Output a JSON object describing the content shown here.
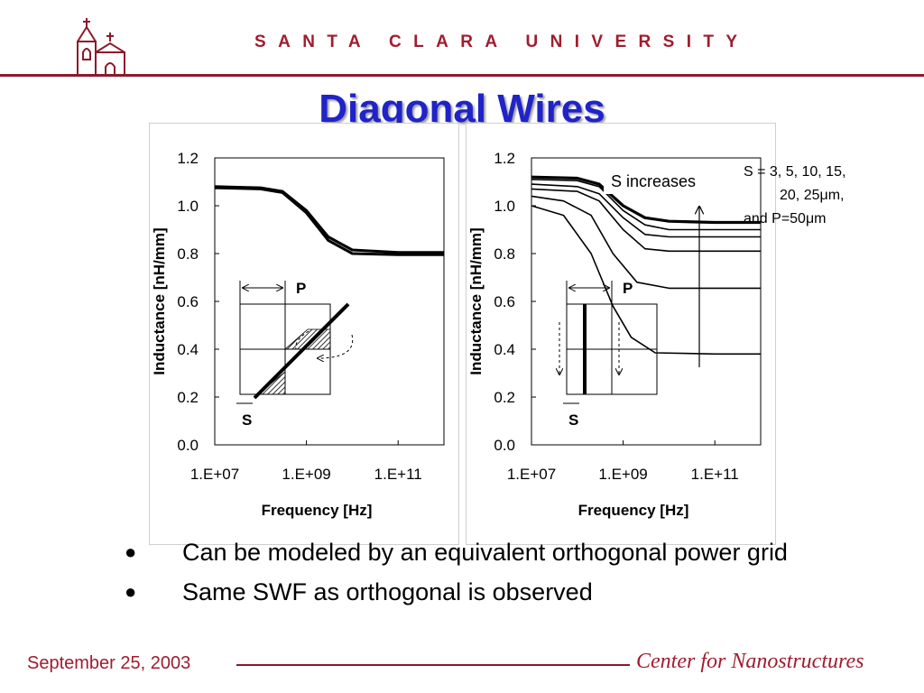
{
  "header": {
    "university": "SANTA CLARA UNIVERSITY",
    "title": "Diagonal Wires"
  },
  "legend_note": {
    "line1": "S = 3, 5, 10, 15,",
    "line2": "20, 25μm,",
    "line3": "and P=50μm"
  },
  "bullets": [
    {
      "text": "Can be modeled by an equivalent orthogonal power grid"
    },
    {
      "text": "Same SWF as orthogonal is observed"
    }
  ],
  "footer": {
    "date": "September 25, 2003",
    "center": "Center for Nanostructures"
  },
  "chart_data": [
    {
      "type": "line",
      "xlabel": "Frequency [Hz]",
      "ylabel": "Inductance [nH/mm]",
      "x_scale": "log",
      "xlim": [
        10000000,
        1000000000000
      ],
      "ylim": [
        0,
        1.2
      ],
      "x_ticks": [
        "1.E+07",
        "1.E+09",
        "1.E+11"
      ],
      "y_ticks": [
        "0.0",
        "0.2",
        "0.4",
        "0.6",
        "0.8",
        "1.0",
        "1.2"
      ],
      "inset_labels": {
        "P": "P",
        "S": "S"
      },
      "series": [
        {
          "x": [
            10000000,
            100000000,
            300000000,
            1000000000,
            3000000000,
            10000000000,
            100000000000,
            1000000000000
          ],
          "y": [
            1.08,
            1.075,
            1.06,
            0.98,
            0.87,
            0.815,
            0.805,
            0.805
          ]
        },
        {
          "x": [
            10000000,
            100000000,
            300000000,
            1000000000,
            3000000000,
            10000000000,
            100000000000,
            1000000000000
          ],
          "y": [
            1.075,
            1.07,
            1.055,
            0.97,
            0.855,
            0.8,
            0.795,
            0.795
          ]
        }
      ]
    },
    {
      "type": "line",
      "xlabel": "Frequency [Hz]",
      "ylabel": "Inductance [nH/mm]",
      "x_scale": "log",
      "xlim": [
        10000000,
        1000000000000
      ],
      "ylim": [
        0,
        1.2
      ],
      "x_ticks": [
        "1.E+07",
        "1.E+09",
        "1.E+11"
      ],
      "y_ticks": [
        "0.0",
        "0.2",
        "0.4",
        "0.6",
        "0.8",
        "1.0",
        "1.2"
      ],
      "annotation": "S increases",
      "inset_labels": {
        "P": "P",
        "S": "S"
      },
      "series": [
        {
          "x": [
            10000000,
            100000000,
            300000000,
            1000000000,
            3000000000,
            10000000000,
            100000000000,
            1000000000000
          ],
          "y": [
            1.12,
            1.115,
            1.09,
            1.0,
            0.95,
            0.935,
            0.93,
            0.93
          ]
        },
        {
          "x": [
            10000000,
            100000000,
            300000000,
            1000000000,
            3000000000,
            10000000000,
            100000000000,
            1000000000000
          ],
          "y": [
            1.11,
            1.105,
            1.08,
            0.98,
            0.92,
            0.9,
            0.9,
            0.9
          ]
        },
        {
          "x": [
            10000000,
            100000000,
            300000000,
            1000000000,
            3000000000,
            10000000000,
            100000000000,
            1000000000000
          ],
          "y": [
            1.09,
            1.08,
            1.05,
            0.95,
            0.88,
            0.87,
            0.87,
            0.87
          ]
        },
        {
          "x": [
            10000000,
            100000000,
            300000000,
            1000000000,
            3000000000,
            10000000000,
            100000000000,
            1000000000000
          ],
          "y": [
            1.07,
            1.06,
            1.02,
            0.9,
            0.82,
            0.81,
            0.81,
            0.81
          ]
        },
        {
          "x": [
            10000000,
            50000000,
            200000000,
            600000000,
            2000000000,
            10000000000,
            100000000000,
            1000000000000
          ],
          "y": [
            1.04,
            1.02,
            0.96,
            0.8,
            0.68,
            0.655,
            0.655,
            0.655
          ]
        },
        {
          "x": [
            10000000,
            50000000,
            200000000,
            600000000,
            1500000000,
            5000000000,
            100000000000,
            1000000000000
          ],
          "y": [
            1.0,
            0.96,
            0.8,
            0.58,
            0.45,
            0.385,
            0.38,
            0.38
          ]
        }
      ]
    }
  ]
}
